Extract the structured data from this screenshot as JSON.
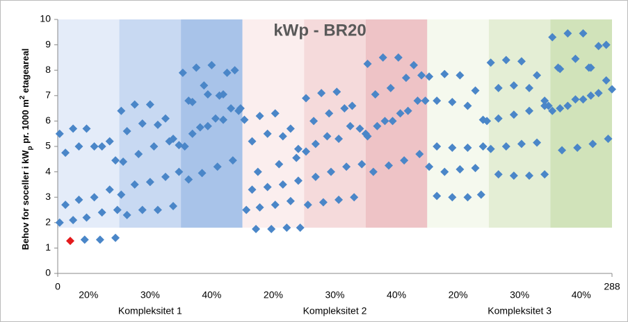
{
  "chart_data": {
    "type": "scatter",
    "title": "kWp - BR20",
    "ylabel_parts": [
      "Behov for soceller i kW",
      "p",
      " pr. 1000 m",
      "2",
      " etageareal"
    ],
    "xlim": [
      0,
      288
    ],
    "ylim": [
      0,
      10
    ],
    "xticks": [
      0,
      288
    ],
    "yticks": [
      0,
      1,
      2,
      3,
      4,
      5,
      6,
      7,
      8,
      9,
      10
    ],
    "bands": [
      {
        "from": 0,
        "to": 32,
        "bottom": 1.8,
        "color": "#e4ecf9",
        "label": "20%"
      },
      {
        "from": 32,
        "to": 64,
        "bottom": 1.8,
        "color": "#c8d9f2",
        "label": "30%"
      },
      {
        "from": 64,
        "to": 96,
        "bottom": 1.8,
        "color": "#a8c3e9",
        "label": "40%"
      },
      {
        "from": 96,
        "to": 128,
        "bottom": 1.8,
        "color": "#fbeeee",
        "label": "20%"
      },
      {
        "from": 128,
        "to": 160,
        "bottom": 1.8,
        "color": "#f5dadb",
        "label": "30%"
      },
      {
        "from": 160,
        "to": 192,
        "bottom": 1.8,
        "color": "#eec3c6",
        "label": "40%"
      },
      {
        "from": 192,
        "to": 224,
        "bottom": 1.8,
        "color": "#f5f9ee",
        "label": "20%"
      },
      {
        "from": 224,
        "to": 256,
        "bottom": 1.8,
        "color": "#e4eed5",
        "label": "30%"
      },
      {
        "from": 256,
        "to": 288,
        "bottom": 1.8,
        "color": "#d1e3ba",
        "label": "40%"
      }
    ],
    "groups": [
      {
        "from": 0,
        "to": 96,
        "label": "Kompleksitet 1"
      },
      {
        "from": 96,
        "to": 192,
        "label": "Kompleksitet 2"
      },
      {
        "from": 192,
        "to": 288,
        "label": "Kompleksitet 3"
      }
    ],
    "series": [
      {
        "color": "#4a86c8",
        "x": [
          1,
          4,
          8,
          11,
          15,
          19,
          23,
          27,
          31,
          1,
          4,
          8,
          11,
          15,
          19,
          23,
          27,
          30,
          14,
          22,
          30
        ],
        "values": [
          2.0,
          2.7,
          2.1,
          2.9,
          2.2,
          3.0,
          2.4,
          3.3,
          2.5,
          5.5,
          4.75,
          5.7,
          5.0,
          5.7,
          5.0,
          5.0,
          5.2,
          4.45,
          1.33,
          1.33,
          1.4
        ]
      },
      {
        "color": "#4a86c8",
        "x": [
          33,
          36,
          40,
          44,
          48,
          52,
          56,
          60,
          63,
          33,
          36,
          40,
          44,
          48,
          52,
          56,
          60,
          63,
          34,
          42,
          50,
          58
        ],
        "values": [
          3.1,
          2.3,
          3.5,
          2.5,
          3.6,
          2.5,
          3.8,
          2.65,
          4.0,
          6.4,
          5.6,
          6.65,
          5.9,
          6.65,
          5.85,
          6.1,
          5.3,
          5.05,
          4.4,
          4.7,
          5.0,
          5.2
        ]
      },
      {
        "color": "#4a86c8",
        "x": [
          65,
          68,
          72,
          76,
          80,
          84,
          88,
          92,
          95,
          66,
          70,
          74,
          78,
          82,
          86,
          90,
          94,
          68,
          75,
          83,
          91,
          78,
          86,
          70
        ],
        "values": [
          7.9,
          6.8,
          8.1,
          7.4,
          8.2,
          7.0,
          7.9,
          8.0,
          6.5,
          5.0,
          5.5,
          5.75,
          5.8,
          6.1,
          6.05,
          6.5,
          6.4,
          3.7,
          3.95,
          4.2,
          4.45,
          7.05,
          7.05,
          6.75
        ]
      },
      {
        "color": "#4a86c8",
        "x": [
          97,
          101,
          105,
          109,
          113,
          117,
          121,
          125,
          98,
          101,
          105,
          109,
          113,
          117,
          121,
          125,
          103,
          111,
          119,
          126,
          104,
          115,
          124
        ],
        "values": [
          6.05,
          5.2,
          6.2,
          5.5,
          6.3,
          5.4,
          5.7,
          4.9,
          2.5,
          3.3,
          2.6,
          3.4,
          2.7,
          3.5,
          2.85,
          3.65,
          1.75,
          1.75,
          1.8,
          1.8,
          4.0,
          4.3,
          4.55
        ]
      },
      {
        "color": "#4a86c8",
        "x": [
          129,
          133,
          137,
          141,
          145,
          149,
          153,
          157,
          160,
          129,
          134,
          140,
          146,
          152,
          130,
          134,
          138,
          142,
          146,
          150,
          154,
          158
        ],
        "values": [
          6.9,
          6.0,
          7.1,
          6.3,
          7.15,
          6.5,
          6.6,
          5.7,
          5.5,
          4.8,
          5.1,
          5.4,
          5.3,
          5.8,
          2.7,
          3.8,
          2.8,
          4.0,
          2.9,
          4.2,
          3.0,
          4.3
        ]
      },
      {
        "color": "#4a86c8",
        "x": [
          161,
          165,
          169,
          173,
          177,
          181,
          185,
          189,
          191,
          161,
          166,
          170,
          174,
          178,
          182,
          187,
          164,
          172,
          180,
          188
        ],
        "values": [
          8.25,
          7.05,
          8.5,
          7.3,
          8.5,
          7.7,
          8.2,
          7.8,
          6.8,
          5.4,
          5.8,
          6.0,
          6.0,
          6.3,
          6.4,
          6.8,
          4.0,
          4.25,
          4.45,
          4.7
        ]
      },
      {
        "color": "#4a86c8",
        "x": [
          193,
          197,
          201,
          205,
          209,
          213,
          217,
          221,
          223,
          193,
          197,
          201,
          205,
          209,
          213,
          217,
          221,
          197,
          205,
          213,
          220
        ],
        "values": [
          7.75,
          6.8,
          7.85,
          6.75,
          7.8,
          6.6,
          7.2,
          6.05,
          6.0,
          4.2,
          5.0,
          4.0,
          4.95,
          4.1,
          4.95,
          4.15,
          5.0,
          3.05,
          3.0,
          3.0,
          3.1
        ]
      },
      {
        "color": "#4a86c8",
        "x": [
          225,
          229,
          233,
          237,
          241,
          245,
          249,
          253,
          255,
          225,
          229,
          233,
          237,
          241,
          245,
          249,
          253,
          229,
          237,
          245,
          253
        ],
        "values": [
          8.3,
          7.3,
          8.4,
          7.4,
          8.35,
          7.3,
          7.8,
          6.8,
          6.6,
          4.9,
          6.1,
          5.0,
          6.25,
          5.1,
          6.4,
          5.15,
          6.6,
          3.9,
          3.85,
          3.85,
          3.9
        ]
      },
      {
        "color": "#4a86c8",
        "x": [
          257,
          261,
          265,
          269,
          273,
          277,
          281,
          285,
          288,
          257,
          261,
          265,
          269,
          273,
          277,
          281,
          285,
          262,
          270,
          278,
          286,
          260,
          276
        ],
        "values": [
          9.3,
          8.05,
          9.45,
          8.45,
          9.45,
          8.1,
          8.95,
          9.0,
          7.25,
          6.4,
          6.5,
          6.6,
          6.85,
          6.85,
          7.0,
          7.1,
          7.6,
          4.85,
          4.95,
          5.1,
          5.3,
          8.1,
          8.1
        ]
      },
      {
        "color": "#e31a1c",
        "x": [
          6.5
        ],
        "values": [
          1.28
        ]
      }
    ]
  }
}
